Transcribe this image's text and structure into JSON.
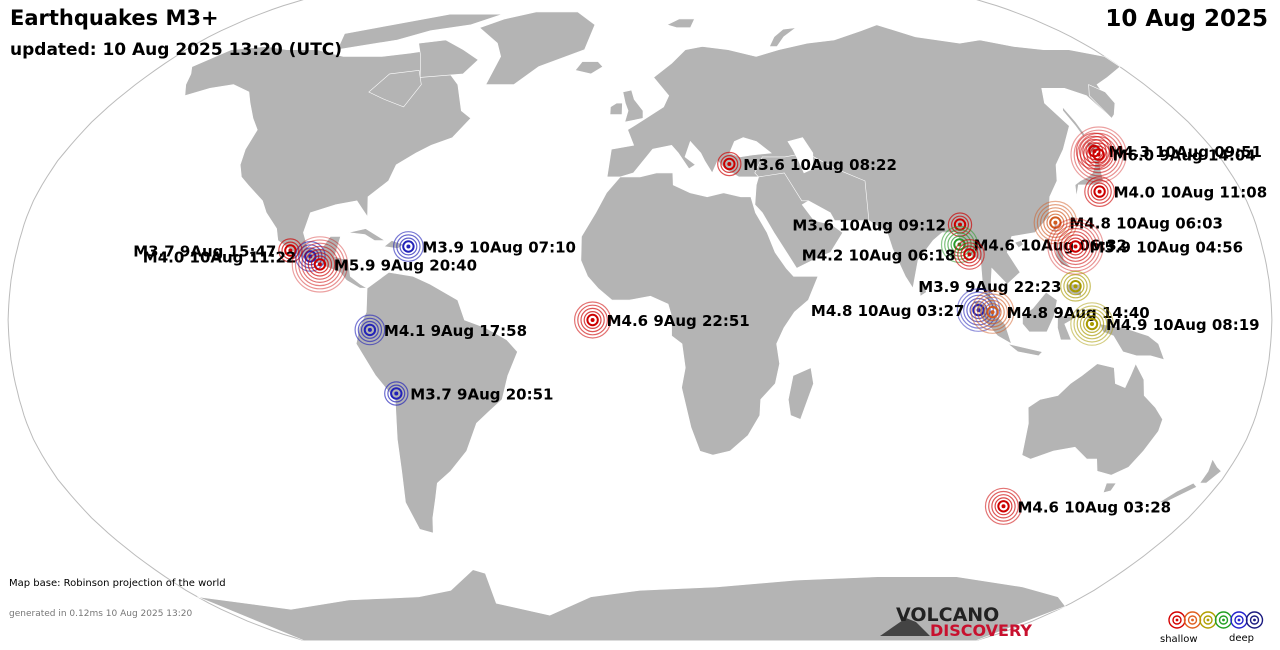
{
  "header": {
    "title": "Earthquakes M3+",
    "updated": "updated: 10 Aug 2025 13:20 (UTC)",
    "date": "10 Aug 2025"
  },
  "footer": {
    "map_base": "Map base: Robinson projection of the world",
    "generated": "generated in 0.12ms 10 Aug 2025 13:20"
  },
  "logo": {
    "line1": "VOLCANO",
    "line2": "DISCOVERY"
  },
  "legend": {
    "shallow": "shallow",
    "deep": "deep",
    "depth_colors": [
      "#d40000",
      "#e06020",
      "#b0a000",
      "#22a022",
      "#2222cc",
      "#1a1a80"
    ]
  },
  "colors": {
    "ocean": "#ffffff",
    "land": "#b4b4b4",
    "land_border": "#ffffff",
    "map_outline": "#bbbbbb"
  },
  "quakes": [
    {
      "label": "M4.3 10Aug 09:51",
      "lon": 142.4,
      "lat": 42.5,
      "mag": 4.3,
      "depth": "shallow"
    },
    {
      "label": "M6.0  9Aug 14:04",
      "lon": 143.0,
      "lat": 41.6,
      "mag": 6.0,
      "depth": "shallow"
    },
    {
      "label": "M3.6 10Aug 08:22",
      "lon": 27.5,
      "lat": 39.2,
      "mag": 3.6,
      "depth": "shallow"
    },
    {
      "label": "M4.0 10Aug 11:08",
      "lon": 137.5,
      "lat": 32.3,
      "mag": 4.0,
      "depth": "shallow"
    },
    {
      "label": "M3.6 10Aug 09:12",
      "lon": 93.5,
      "lat": 24.0,
      "mag": 3.6,
      "depth": "shallow"
    },
    {
      "label": "M4.8 10Aug 06:03",
      "lon": 121.5,
      "lat": 24.5,
      "mag": 4.8,
      "depth": "shallow-mid"
    },
    {
      "label": "M4.6 10Aug 06:32",
      "lon": 92.5,
      "lat": 19.0,
      "mag": 4.6,
      "depth": "intermediate"
    },
    {
      "label": "M5.9 10Aug 04:56",
      "lon": 126.0,
      "lat": 18.5,
      "mag": 5.9,
      "depth": "shallow"
    },
    {
      "label": "M4.2 10Aug 06:18",
      "lon": 95.0,
      "lat": 16.5,
      "mag": 4.2,
      "depth": "shallow"
    },
    {
      "label": "M3.9  9Aug 22:23",
      "lon": 124.5,
      "lat": 8.5,
      "mag": 3.9,
      "depth": "mid"
    },
    {
      "label": "M4.8 10Aug 03:27",
      "lon": 96.5,
      "lat": 2.5,
      "mag": 4.8,
      "depth": "deep"
    },
    {
      "label": "M4.8  9Aug 14:40",
      "lon": 100.5,
      "lat": 2.0,
      "mag": 4.8,
      "depth": "shallow-mid"
    },
    {
      "label": "M4.9 10Aug 08:19",
      "lon": 128.8,
      "lat": -1.0,
      "mag": 4.9,
      "depth": "mid"
    },
    {
      "label": "M3.7  9Aug 15:47",
      "lon": -101.0,
      "lat": 17.5,
      "mag": 3.7,
      "depth": "shallow"
    },
    {
      "label": "M4.0 10Aug 11:22",
      "lon": -95.0,
      "lat": 16.0,
      "mag": 4.0,
      "depth": "deep"
    },
    {
      "label": "M5.9  9Aug 20:40",
      "lon": -92.0,
      "lat": 14.0,
      "mag": 5.9,
      "depth": "shallow"
    },
    {
      "label": "M3.9 10Aug 07:10",
      "lon": -67.0,
      "lat": 18.5,
      "mag": 3.9,
      "depth": "deep"
    },
    {
      "label": "M4.6  9Aug 22:51",
      "lon": -13.5,
      "lat": 0.0,
      "mag": 4.6,
      "depth": "shallow"
    },
    {
      "label": "M4.1  9Aug 17:58",
      "lon": -77.0,
      "lat": -2.5,
      "mag": 4.1,
      "depth": "deep"
    },
    {
      "label": "M3.7  9Aug 20:51",
      "lon": -70.5,
      "lat": -18.5,
      "mag": 3.7,
      "depth": "deep"
    },
    {
      "label": "M4.6 10Aug 03:28",
      "lon": 117.0,
      "lat": -47.0,
      "mag": 4.6,
      "depth": "shallow"
    }
  ]
}
